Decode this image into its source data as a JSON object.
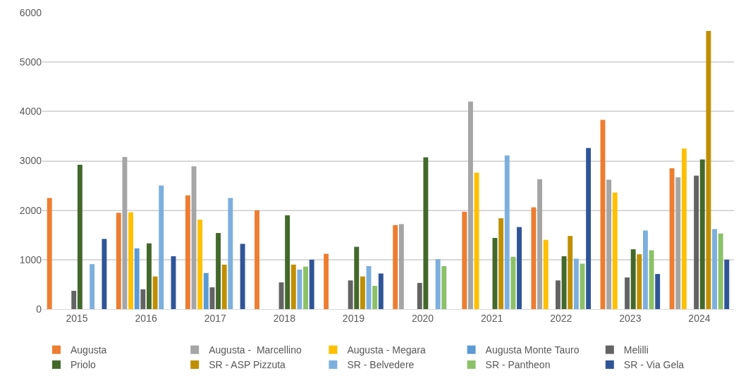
{
  "chart_data": {
    "type": "bar",
    "categories": [
      "2015",
      "2016",
      "2017",
      "2018",
      "2019",
      "2020",
      "2021",
      "2022",
      "2023",
      "2024"
    ],
    "ylim": [
      0,
      6000
    ],
    "yticks": [
      0,
      1000,
      2000,
      3000,
      4000,
      5000,
      6000
    ],
    "grid": "y",
    "legend": "bottom",
    "series": [
      {
        "name": "Augusta",
        "color": "#ed7d31",
        "values": [
          2250,
          1950,
          2300,
          2000,
          1120,
          1700,
          1970,
          2060,
          3830,
          2850
        ]
      },
      {
        "name": "Augusta -  Marcellino",
        "color": "#a5a5a5",
        "values": [
          null,
          3080,
          2890,
          null,
          null,
          1720,
          4200,
          2630,
          2620,
          2670
        ]
      },
      {
        "name": "Augusta - Megara",
        "color": "#ffc000",
        "values": [
          null,
          1960,
          1810,
          null,
          null,
          null,
          2760,
          1400,
          2360,
          3250
        ]
      },
      {
        "name": "Augusta Monte Tauro",
        "color": "#5b9bd5",
        "values": [
          null,
          1230,
          730,
          null,
          null,
          null,
          null,
          null,
          null,
          null
        ]
      },
      {
        "name": "Melilli",
        "color": "#636363",
        "values": [
          370,
          400,
          440,
          540,
          580,
          530,
          null,
          580,
          640,
          2700
        ]
      },
      {
        "name": "Priolo",
        "color": "#43682b",
        "values": [
          2920,
          1330,
          1540,
          1900,
          1260,
          3070,
          1440,
          1070,
          1210,
          3030
        ]
      },
      {
        "name": "SR - ASP Pizzuta",
        "color": "#bf8f00",
        "values": [
          null,
          660,
          900,
          900,
          660,
          null,
          1840,
          1480,
          1110,
          5630
        ]
      },
      {
        "name": "SR - Belvedere",
        "color": "#7cafdd",
        "values": [
          910,
          2500,
          2250,
          800,
          870,
          1010,
          3110,
          1020,
          1590,
          1620
        ]
      },
      {
        "name": "SR - Pantheon",
        "color": "#8cc168",
        "values": [
          null,
          null,
          null,
          860,
          470,
          870,
          1060,
          920,
          1190,
          1530
        ]
      },
      {
        "name": "SR - Via Gela",
        "color": "#2f5597",
        "values": [
          1420,
          1070,
          1320,
          1000,
          720,
          null,
          1660,
          3260,
          710,
          1000
        ]
      }
    ]
  }
}
